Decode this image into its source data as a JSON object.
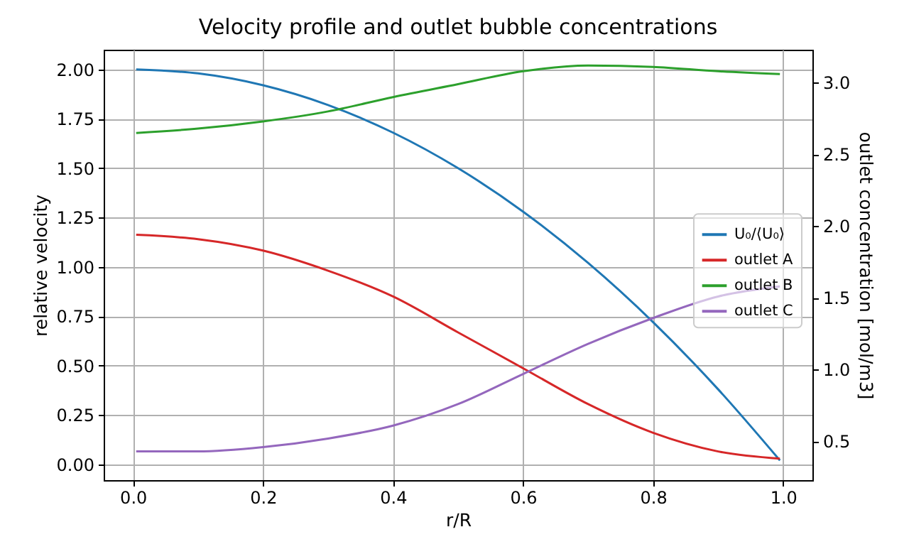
{
  "chart_data": {
    "type": "line",
    "title": "Velocity profile and outlet bubble concentrations",
    "xlabel": "r/R",
    "ylabel": "relative velocity",
    "y2label": "outlet concentration [mol/m3]",
    "x": [
      0.005,
      0.1,
      0.2,
      0.3,
      0.4,
      0.5,
      0.6,
      0.7,
      0.8,
      0.9,
      0.995
    ],
    "series": [
      {
        "name": "U₀/⟨U₀⟩",
        "color": "#1f77b4",
        "values": [
          2.0,
          1.98,
          1.92,
          1.82,
          1.68,
          1.5,
          1.28,
          1.02,
          0.72,
          0.38,
          0.02
        ]
      },
      {
        "name": "outlet A",
        "color": "#d62728",
        "axis": "y2",
        "values": [
          1.94,
          1.91,
          1.83,
          1.69,
          1.51,
          1.26,
          1.01,
          0.76,
          0.56,
          0.43,
          0.38
        ]
      },
      {
        "name": "outlet B",
        "color": "#2ca02c",
        "axis": "y2",
        "values": [
          2.65,
          2.68,
          2.73,
          2.8,
          2.9,
          2.99,
          3.08,
          3.12,
          3.11,
          3.08,
          3.06
        ]
      },
      {
        "name": "outlet C",
        "color": "#9467bd",
        "axis": "y2",
        "values": [
          0.43,
          0.43,
          0.46,
          0.52,
          0.61,
          0.76,
          0.97,
          1.18,
          1.36,
          1.51,
          1.58
        ]
      }
    ],
    "xlim": [
      -0.045,
      1.045
    ],
    "xticks": [
      {
        "value": 0,
        "label": "0.0"
      },
      0.2,
      0.4,
      0.6,
      0.8,
      {
        "value": 1,
        "label": "1.0"
      }
    ],
    "ylim": [
      -0.08,
      2.1
    ],
    "yticks": [
      {
        "value": 0,
        "label": "0.00"
      },
      0.25,
      {
        "value": 0.5,
        "label": "0.50"
      },
      0.75,
      {
        "value": 1,
        "label": "1.00"
      },
      1.25,
      {
        "value": 1.5,
        "label": "1.50"
      },
      1.75,
      {
        "value": 2,
        "label": "2.00"
      }
    ],
    "y2lim": [
      0.23,
      3.23
    ],
    "y2ticks": [
      0.5,
      {
        "value": 1,
        "label": "1.0"
      },
      1.5,
      {
        "value": 2,
        "label": "2.0"
      },
      2.5,
      {
        "value": 3,
        "label": "3.0"
      }
    ],
    "grid": true,
    "legend": "right",
    "line_style": "solid"
  }
}
